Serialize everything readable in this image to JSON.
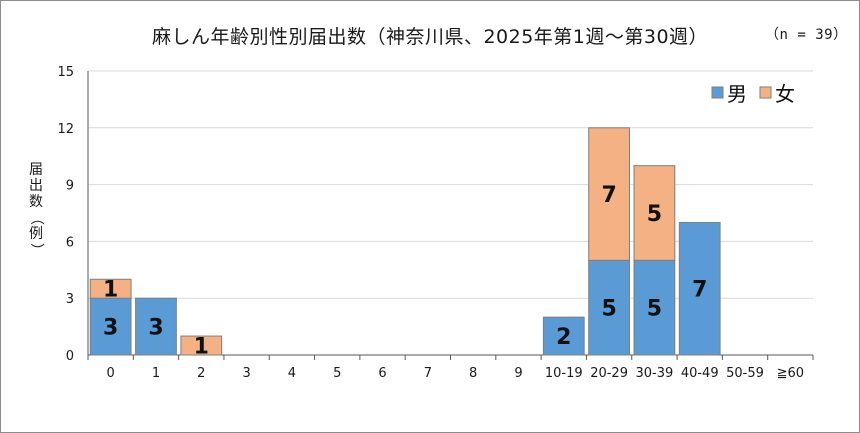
{
  "chart_data": {
    "type": "bar",
    "stacked": true,
    "title": "麻しん年齢別性別届出数（神奈川県、2025年第1週～第30週）",
    "subtitle": "（n = 39）",
    "ylabel": "届出数（例）",
    "xlabel": "",
    "ylim": [
      0,
      15
    ],
    "yticks": [
      0,
      3,
      6,
      9,
      12,
      15
    ],
    "grid": true,
    "legend_position": "top-right",
    "categories": [
      "0",
      "1",
      "2",
      "3",
      "4",
      "5",
      "6",
      "7",
      "8",
      "9",
      "10-19",
      "20-29",
      "30-39",
      "40-49",
      "50-59",
      "≧60"
    ],
    "series": [
      {
        "name": "男",
        "color": "#5b9bd5",
        "values": [
          3,
          3,
          0,
          0,
          0,
          0,
          0,
          0,
          0,
          0,
          2,
          5,
          5,
          7,
          0,
          0
        ]
      },
      {
        "name": "女",
        "color": "#f4b183",
        "values": [
          1,
          0,
          1,
          0,
          0,
          0,
          0,
          0,
          0,
          0,
          0,
          7,
          5,
          0,
          0,
          0
        ]
      }
    ]
  }
}
